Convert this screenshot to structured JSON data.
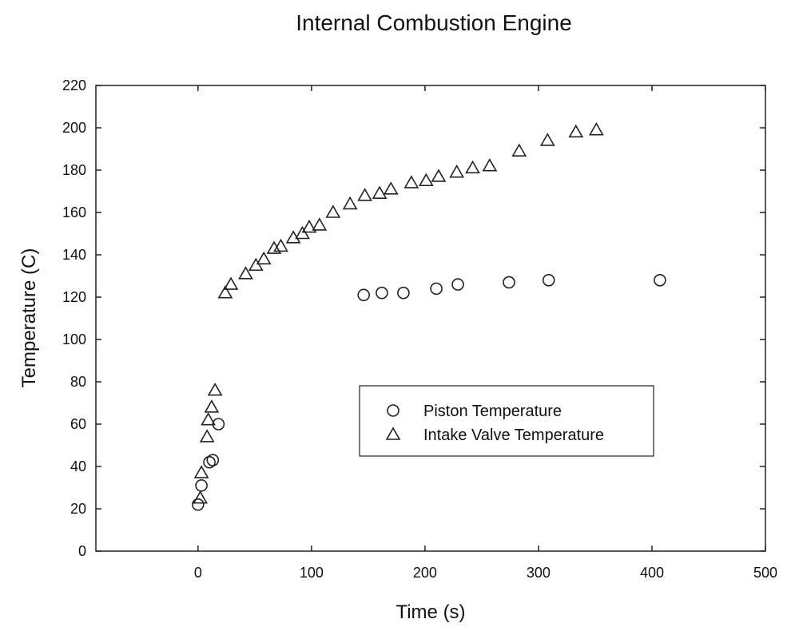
{
  "chart_data": {
    "type": "scatter",
    "title": "Internal Combustion Engine",
    "xlabel": "Time (s)",
    "ylabel": "Temperature (C)",
    "xlim": [
      -90,
      500
    ],
    "ylim": [
      0,
      220
    ],
    "xticks": [
      0,
      100,
      200,
      300,
      400,
      500
    ],
    "yticks": [
      0,
      20,
      40,
      60,
      80,
      100,
      120,
      140,
      160,
      180,
      200,
      220
    ],
    "grid": false,
    "legend_position": "center-right",
    "series": [
      {
        "name": "Piston Temperature",
        "marker": "circle",
        "points": [
          [
            0,
            22
          ],
          [
            3,
            31
          ],
          [
            10,
            42
          ],
          [
            13,
            43
          ],
          [
            18,
            60
          ],
          [
            146,
            121
          ],
          [
            162,
            122
          ],
          [
            181,
            122
          ],
          [
            210,
            124
          ],
          [
            229,
            126
          ],
          [
            274,
            127
          ],
          [
            309,
            128
          ],
          [
            407,
            128
          ]
        ]
      },
      {
        "name": "Intake Valve Temperature",
        "marker": "triangle",
        "points": [
          [
            2,
            25
          ],
          [
            3,
            37
          ],
          [
            8,
            54
          ],
          [
            9,
            62
          ],
          [
            12,
            68
          ],
          [
            15,
            76
          ],
          [
            24,
            122
          ],
          [
            29,
            126
          ],
          [
            42,
            131
          ],
          [
            51,
            135
          ],
          [
            58,
            138
          ],
          [
            67,
            143
          ],
          [
            73,
            144
          ],
          [
            84,
            148
          ],
          [
            92,
            150
          ],
          [
            98,
            153
          ],
          [
            107,
            154
          ],
          [
            119,
            160
          ],
          [
            134,
            164
          ],
          [
            147,
            168
          ],
          [
            160,
            169
          ],
          [
            170,
            171
          ],
          [
            188,
            174
          ],
          [
            201,
            175
          ],
          [
            212,
            177
          ],
          [
            228,
            179
          ],
          [
            242,
            181
          ],
          [
            257,
            182
          ],
          [
            283,
            189
          ],
          [
            308,
            194
          ],
          [
            333,
            198
          ],
          [
            351,
            199
          ]
        ]
      }
    ]
  }
}
